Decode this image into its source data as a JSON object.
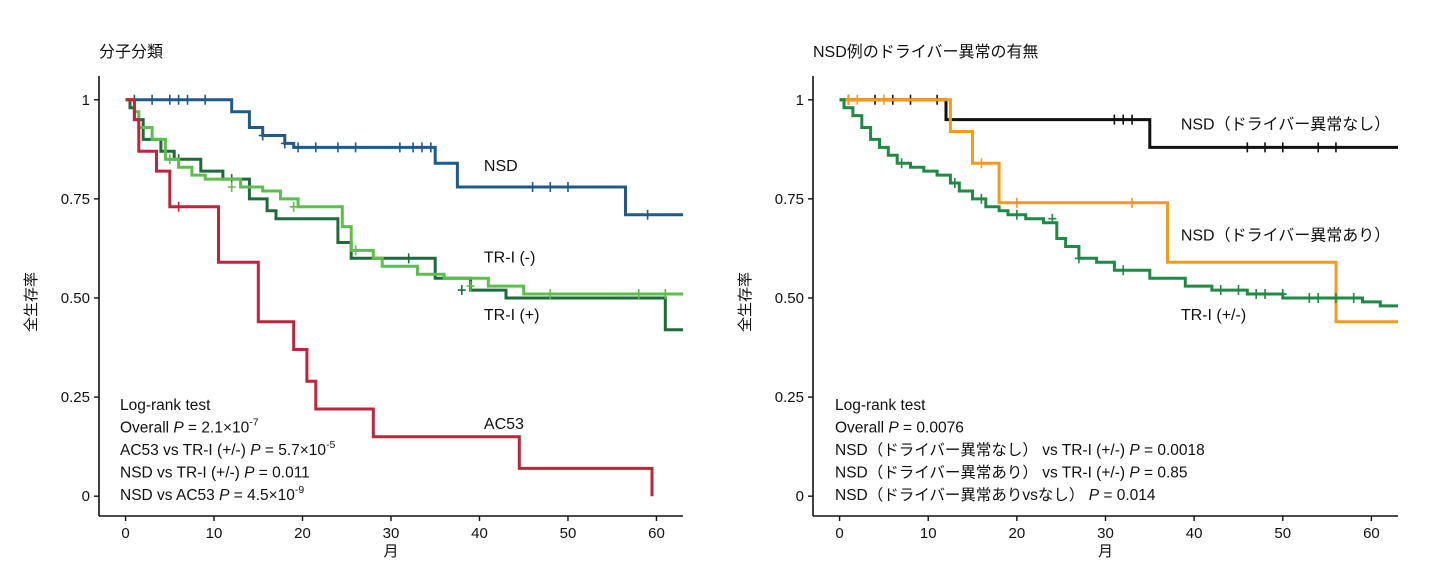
{
  "chart_data": [
    {
      "type": "line",
      "subtype": "kaplan-meier",
      "title": "分子分類",
      "xlabel": "月",
      "ylabel": "全生存率",
      "xlim": [
        -3,
        63
      ],
      "ylim": [
        -0.05,
        1.06
      ],
      "xticks": [
        0,
        10,
        20,
        30,
        40,
        50,
        60
      ],
      "yticks": [
        0,
        0.25,
        0.5,
        0.75,
        1
      ],
      "ytick_labels": [
        "0",
        "0.25",
        "0.50",
        "0.75",
        "1"
      ],
      "series": [
        {
          "name": "NSD",
          "color": "#1f5a8b",
          "steps": [
            [
              0,
              1
            ],
            [
              12,
              0.97
            ],
            [
              14,
              0.93
            ],
            [
              15.5,
              0.91
            ],
            [
              18,
              0.89
            ],
            [
              19,
              0.88
            ],
            [
              35,
              0.84
            ],
            [
              37.5,
              0.78
            ],
            [
              56.5,
              0.71
            ],
            [
              63,
              0.71
            ]
          ],
          "censors": [
            [
              1,
              1
            ],
            [
              3,
              1
            ],
            [
              5,
              1
            ],
            [
              6,
              1
            ],
            [
              7,
              1
            ],
            [
              9,
              1
            ],
            [
              15.5,
              0.91
            ],
            [
              18,
              0.89
            ],
            [
              19.5,
              0.88
            ],
            [
              21.5,
              0.88
            ],
            [
              24,
              0.88
            ],
            [
              26,
              0.88
            ],
            [
              31,
              0.88
            ],
            [
              32.5,
              0.88
            ],
            [
              33.5,
              0.88
            ],
            [
              34.5,
              0.88
            ],
            [
              46,
              0.78
            ],
            [
              48,
              0.78
            ],
            [
              50,
              0.78
            ],
            [
              59,
              0.71
            ]
          ]
        },
        {
          "name": "TR-I (-)",
          "color": "#1d6b3a",
          "steps": [
            [
              0,
              1
            ],
            [
              0.5,
              0.98
            ],
            [
              1,
              0.95
            ],
            [
              2,
              0.9
            ],
            [
              4,
              0.87
            ],
            [
              5.5,
              0.85
            ],
            [
              8.5,
              0.82
            ],
            [
              11,
              0.8
            ],
            [
              14,
              0.75
            ],
            [
              16,
              0.72
            ],
            [
              17,
              0.7
            ],
            [
              24,
              0.64
            ],
            [
              25.5,
              0.6
            ],
            [
              35,
              0.55
            ],
            [
              39,
              0.52
            ],
            [
              43,
              0.5
            ],
            [
              61,
              0.42
            ],
            [
              63,
              0.42
            ]
          ],
          "censors": [
            [
              6,
              0.85
            ],
            [
              12,
              0.8
            ],
            [
              32,
              0.6
            ],
            [
              38,
              0.52
            ]
          ]
        },
        {
          "name": "TR-I (+)",
          "color": "#5cbf4c",
          "steps": [
            [
              0,
              1
            ],
            [
              1,
              0.97
            ],
            [
              1.5,
              0.93
            ],
            [
              3,
              0.9
            ],
            [
              4.5,
              0.85
            ],
            [
              6,
              0.83
            ],
            [
              7.5,
              0.81
            ],
            [
              9,
              0.8
            ],
            [
              13,
              0.78
            ],
            [
              15.5,
              0.77
            ],
            [
              17.5,
              0.75
            ],
            [
              19.5,
              0.73
            ],
            [
              24.5,
              0.68
            ],
            [
              25.5,
              0.62
            ],
            [
              28,
              0.6
            ],
            [
              29,
              0.58
            ],
            [
              33,
              0.56
            ],
            [
              36,
              0.55
            ],
            [
              41,
              0.53
            ],
            [
              45,
              0.51
            ],
            [
              63,
              0.51
            ]
          ],
          "censors": [
            [
              5,
              0.85
            ],
            [
              12,
              0.78
            ],
            [
              19,
              0.73
            ],
            [
              26,
              0.62
            ],
            [
              39,
              0.53
            ],
            [
              48,
              0.51
            ],
            [
              58,
              0.51
            ],
            [
              61,
              0.51
            ]
          ]
        },
        {
          "name": "AC53",
          "color": "#c0233a",
          "steps": [
            [
              0,
              1
            ],
            [
              1,
              0.95
            ],
            [
              1.5,
              0.87
            ],
            [
              3.5,
              0.82
            ],
            [
              5,
              0.73
            ],
            [
              10.5,
              0.59
            ],
            [
              15,
              0.44
            ],
            [
              19,
              0.37
            ],
            [
              20.5,
              0.29
            ],
            [
              21.5,
              0.22
            ],
            [
              28,
              0.15
            ],
            [
              44.5,
              0.07
            ],
            [
              59.5,
              0.0
            ]
          ],
          "censors": [
            [
              6,
              0.73
            ]
          ]
        }
      ],
      "line_labels": [
        {
          "text": "NSD",
          "x": 40.5,
          "y": 0.82
        },
        {
          "text": "TR-I (-)",
          "x": 40.5,
          "y": 0.59
        },
        {
          "text": "TR-I (+)",
          "x": 40.5,
          "y": 0.445
        },
        {
          "text": "AC53",
          "x": 40.5,
          "y": 0.17
        }
      ],
      "annotation": {
        "title": "Log-rank test",
        "lines": [
          {
            "prefix": "Overall ",
            "p": "P",
            "rest": " = 2.1×10",
            "exp": "-7"
          },
          {
            "prefix": "AC53 vs TR-I (+/-) ",
            "p": "P",
            "rest": " = 5.7×10",
            "exp": "-5"
          },
          {
            "prefix": "NSD vs TR-I (+/-) ",
            "p": "P",
            "rest": " = 0.011",
            "exp": ""
          },
          {
            "prefix": "NSD vs AC53 ",
            "p": "P",
            "rest": " = 4.5×10",
            "exp": "-9"
          }
        ]
      }
    },
    {
      "type": "line",
      "subtype": "kaplan-meier",
      "title": "NSD例のドライバー異常の有無",
      "xlabel": "月",
      "ylabel": "全生存率",
      "xlim": [
        -3,
        63
      ],
      "ylim": [
        -0.05,
        1.06
      ],
      "xticks": [
        0,
        10,
        20,
        30,
        40,
        50,
        60
      ],
      "yticks": [
        0,
        0.25,
        0.5,
        0.75,
        1
      ],
      "ytick_labels": [
        "0",
        "0.25",
        "0.50",
        "0.75",
        "1"
      ],
      "series": [
        {
          "name": "NSD（ドライバー異常なし）",
          "color": "#111111",
          "steps": [
            [
              0,
              1
            ],
            [
              12,
              0.95
            ],
            [
              35,
              0.88
            ],
            [
              63,
              0.88
            ]
          ],
          "censors": [
            [
              1,
              1
            ],
            [
              4,
              1
            ],
            [
              6,
              1
            ],
            [
              8,
              1
            ],
            [
              11,
              1
            ],
            [
              31,
              0.95
            ],
            [
              32,
              0.95
            ],
            [
              33,
              0.95
            ],
            [
              46,
              0.88
            ],
            [
              48,
              0.88
            ],
            [
              50,
              0.88
            ],
            [
              54,
              0.88
            ],
            [
              56,
              0.88
            ]
          ]
        },
        {
          "name": "NSD（ドライバー異常あり）",
          "color": "#f39a1f",
          "steps": [
            [
              0,
              1
            ],
            [
              12.5,
              0.92
            ],
            [
              15,
              0.84
            ],
            [
              18,
              0.74
            ],
            [
              37,
              0.59
            ],
            [
              56,
              0.44
            ],
            [
              63,
              0.44
            ]
          ],
          "censors": [
            [
              1,
              1
            ],
            [
              2,
              1
            ],
            [
              5,
              1
            ],
            [
              16,
              0.84
            ],
            [
              20,
              0.74
            ],
            [
              33,
              0.74
            ]
          ]
        },
        {
          "name": "TR-I (+/-)",
          "color": "#1f8a45",
          "steps": [
            [
              0,
              1
            ],
            [
              0.5,
              0.98
            ],
            [
              1.5,
              0.96
            ],
            [
              2.5,
              0.93
            ],
            [
              3.5,
              0.9
            ],
            [
              4.5,
              0.88
            ],
            [
              5.5,
              0.86
            ],
            [
              6.5,
              0.84
            ],
            [
              8,
              0.83
            ],
            [
              9.5,
              0.82
            ],
            [
              11,
              0.81
            ],
            [
              12.5,
              0.79
            ],
            [
              13.5,
              0.77
            ],
            [
              15,
              0.75
            ],
            [
              16.5,
              0.73
            ],
            [
              18,
              0.72
            ],
            [
              19,
              0.71
            ],
            [
              21,
              0.7
            ],
            [
              23,
              0.69
            ],
            [
              24.5,
              0.65
            ],
            [
              25.5,
              0.63
            ],
            [
              27,
              0.6
            ],
            [
              29,
              0.59
            ],
            [
              31,
              0.57
            ],
            [
              35,
              0.55
            ],
            [
              39,
              0.53
            ],
            [
              42,
              0.52
            ],
            [
              46,
              0.51
            ],
            [
              50,
              0.5
            ],
            [
              58,
              0.5
            ],
            [
              59,
              0.49
            ],
            [
              61,
              0.48
            ],
            [
              63,
              0.48
            ]
          ],
          "censors": [
            [
              7,
              0.84
            ],
            [
              13,
              0.79
            ],
            [
              16,
              0.75
            ],
            [
              20,
              0.71
            ],
            [
              24,
              0.7
            ],
            [
              27,
              0.6
            ],
            [
              32,
              0.57
            ],
            [
              43,
              0.52
            ],
            [
              45,
              0.52
            ],
            [
              47,
              0.51
            ],
            [
              48,
              0.51
            ],
            [
              50,
              0.51
            ],
            [
              53,
              0.5
            ],
            [
              54,
              0.5
            ],
            [
              56,
              0.5
            ],
            [
              58,
              0.5
            ]
          ]
        }
      ],
      "line_labels": [
        {
          "text": "NSD（ドライバー異常なし）",
          "x": 38.5,
          "y": 0.925
        },
        {
          "text": "NSD（ドライバー異常あり）",
          "x": 38.5,
          "y": 0.645
        },
        {
          "text": "TR-I (+/-)",
          "x": 38.5,
          "y": 0.445
        }
      ],
      "annotation": {
        "title": "Log-rank test",
        "lines": [
          {
            "prefix": "Overall ",
            "p": "P",
            "rest": " = 0.0076",
            "exp": ""
          },
          {
            "prefix": "NSD（ドライバー異常なし） vs TR-I (+/-) ",
            "p": "P",
            "rest": " = 0.0018",
            "exp": ""
          },
          {
            "prefix": "NSD（ドライバー異常あり） vs TR-I (+/-) ",
            "p": "P",
            "rest": " = 0.85",
            "exp": ""
          },
          {
            "prefix": "NSD（ドライバー異常ありvsなし） ",
            "p": "P",
            "rest": " = 0.014",
            "exp": ""
          }
        ]
      }
    }
  ]
}
